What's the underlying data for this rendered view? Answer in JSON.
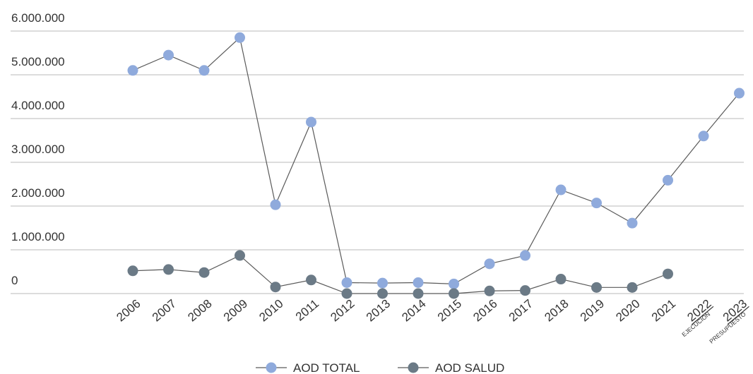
{
  "chart_data": {
    "type": "line",
    "title": "",
    "xlabel": "",
    "ylabel": "",
    "ylim": [
      0,
      6000000
    ],
    "y_ticks": [
      {
        "value": 0,
        "label": "0"
      },
      {
        "value": 1000000,
        "label": "1.000.000"
      },
      {
        "value": 2000000,
        "label": "2.000.000"
      },
      {
        "value": 3000000,
        "label": "3.000.000"
      },
      {
        "value": 4000000,
        "label": "4.000.000"
      },
      {
        "value": 5000000,
        "label": "5.000.000"
      },
      {
        "value": 6000000,
        "label": "6.000.000"
      }
    ],
    "grid": true,
    "legend_position": "bottom",
    "categories": [
      "2006",
      "2007",
      "2008",
      "2009",
      "2010",
      "2011",
      "2012",
      "2013",
      "2014",
      "2015",
      "2016",
      "2017",
      "2018",
      "2019",
      "2020",
      "2021",
      "2022",
      "2023"
    ],
    "category_sublabels": {
      "2022": "EJECUCIÓN",
      "2023": "PRESUPUESTO"
    },
    "series": [
      {
        "name": "AOD TOTAL",
        "color": "#8faadc",
        "values": [
          5100000,
          5450000,
          5100000,
          5850000,
          2030000,
          3920000,
          250000,
          240000,
          250000,
          220000,
          680000,
          870000,
          2370000,
          2070000,
          1610000,
          2590000,
          3600000,
          4580000
        ]
      },
      {
        "name": "AOD SALUD",
        "color": "#6b7a86",
        "values": [
          520000,
          550000,
          480000,
          870000,
          150000,
          310000,
          0,
          0,
          0,
          0,
          60000,
          70000,
          330000,
          140000,
          140000,
          450000,
          null,
          null
        ]
      }
    ]
  }
}
